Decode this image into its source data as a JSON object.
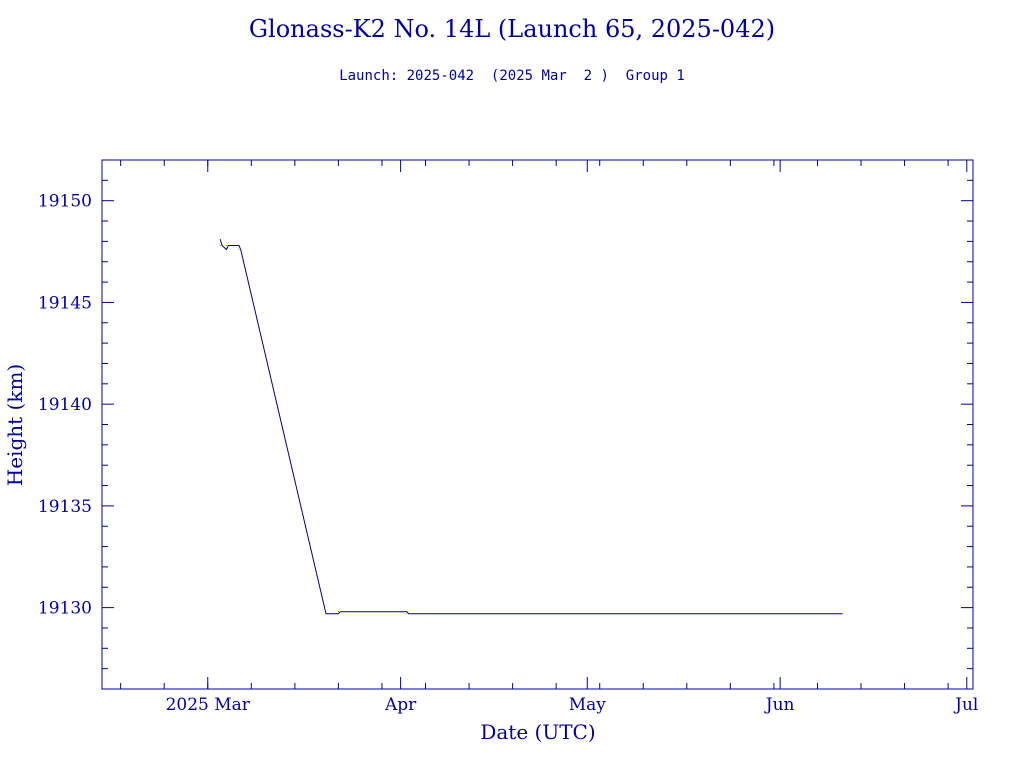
{
  "chart_data": {
    "type": "line",
    "title": "Glonass-K2 No. 14L (Launch 65, 2025-042)",
    "subtitle": "Launch: 2025-042  (2025 Mar  2 )  Group 1",
    "xlabel": "Date (UTC)",
    "ylabel": "Height (km)",
    "xlim": [
      "2025-02-12",
      "2025-07-02"
    ],
    "ylim": [
      19126,
      19152
    ],
    "x_ticks": [
      {
        "date": "2025-03-01",
        "label": "2025 Mar"
      },
      {
        "date": "2025-04-01",
        "label": "Apr"
      },
      {
        "date": "2025-05-01",
        "label": "May"
      },
      {
        "date": "2025-06-01",
        "label": "Jun"
      },
      {
        "date": "2025-07-01",
        "label": "Jul"
      }
    ],
    "y_ticks": [
      19130,
      19135,
      19140,
      19145,
      19150
    ],
    "grid": false,
    "colors": {
      "axis": "#0000a0",
      "line": "#000080"
    },
    "series": [
      {
        "points": [
          [
            "2025-03-03",
            19148.1
          ],
          [
            "2025-03-03",
            19147.8
          ],
          [
            "2025-03-04",
            19147.6
          ],
          [
            "2025-03-04",
            19147.8
          ],
          [
            "2025-03-05",
            19147.8
          ],
          [
            "2025-03-06",
            19147.8
          ],
          [
            "2025-03-06",
            19147.6
          ],
          [
            "2025-03-20",
            19129.7
          ],
          [
            "2025-03-22",
            19129.7
          ],
          [
            "2025-03-22",
            19129.8
          ],
          [
            "2025-04-02",
            19129.8
          ],
          [
            "2025-04-02",
            19129.7
          ],
          [
            "2025-06-11",
            19129.7
          ]
        ]
      }
    ]
  }
}
